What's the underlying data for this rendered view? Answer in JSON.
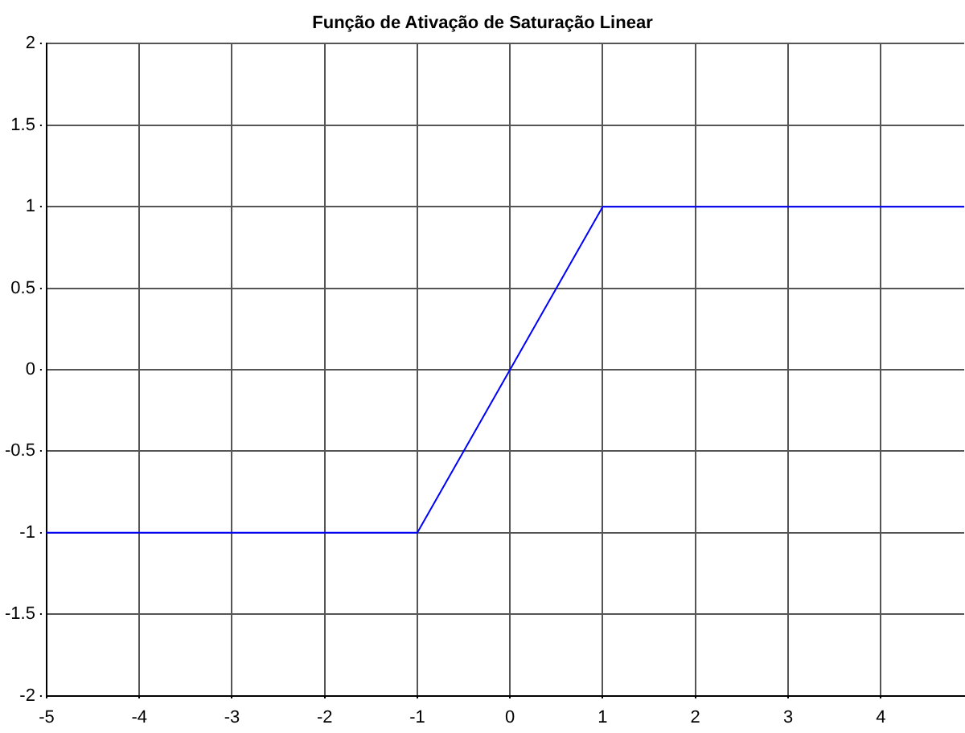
{
  "chart_data": {
    "type": "line",
    "title": "Função de Ativação de Saturação Linear",
    "x": [
      -5,
      -1,
      1,
      4.9
    ],
    "series": [
      {
        "color": "#0000ff",
        "values": [
          -1,
          -1,
          1,
          1
        ]
      }
    ],
    "xlim": [
      -5,
      4.9
    ],
    "xticks": [
      -5,
      -4,
      -3,
      -2,
      -1,
      0,
      1,
      2,
      3,
      4
    ],
    "ylim": [
      -2,
      2
    ],
    "yticks": [
      -2,
      -1.5,
      -1,
      -0.5,
      0,
      0.5,
      1,
      1.5,
      2
    ],
    "grid": true,
    "legend": false,
    "marker": "none",
    "line_style": "solid"
  }
}
